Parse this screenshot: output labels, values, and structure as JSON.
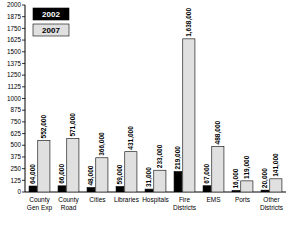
{
  "chart_data": {
    "type": "bar",
    "categories": [
      "County Gen Exp",
      "County Road",
      "Cities",
      "Libraries",
      "Hospitals",
      "Fire Districts",
      "EMS",
      "Ports",
      "Other Districts"
    ],
    "series": [
      {
        "name": "2002",
        "color": "#000000",
        "values": [
          64,
          66,
          48,
          59,
          31,
          219,
          67,
          16,
          20
        ],
        "value_labels": [
          "64,000",
          "66,000",
          "48,000",
          "59,000",
          "31,000",
          "219,000",
          "67,000",
          "16,000",
          "20,000"
        ]
      },
      {
        "name": "2007",
        "color": "#e0e0e0",
        "values": [
          552,
          571,
          366,
          431,
          233,
          1638,
          488,
          119,
          141
        ],
        "value_labels": [
          "552,000",
          "571,000",
          "366,000",
          "431,000",
          "233,000",
          "1,638,000",
          "488,000",
          "119,000",
          "141,000"
        ]
      }
    ],
    "ylim": [
      0,
      2000
    ],
    "yticks": [
      0,
      125,
      250,
      375,
      500,
      625,
      750,
      875,
      1000,
      1125,
      1250,
      1375,
      1500,
      1625,
      1750,
      1875,
      2000
    ],
    "grid": false,
    "legend": "upper left",
    "data_labels": true
  }
}
